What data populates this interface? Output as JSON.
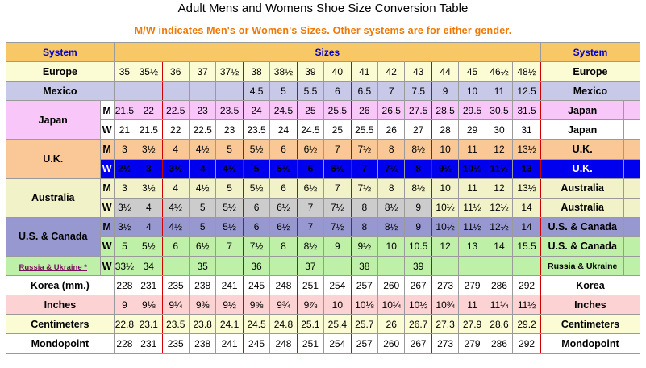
{
  "title": "Adult Mens and Womens Shoe Size Conversion Table",
  "subtitle": "M/W indicates Men's or Women's Sizes. Other systems are for either gender.",
  "header": {
    "system_left": "System",
    "sizes": "Sizes",
    "system_right": "System"
  },
  "rows": [
    {
      "label": "Europe",
      "gender": "",
      "right": "Europe",
      "bg": "#fbfbd4",
      "values": [
        "35",
        "35½",
        "36",
        "37",
        "37½",
        "38",
        "38½",
        "39",
        "40",
        "41",
        "42",
        "43",
        "44",
        "45",
        "46½",
        "48½"
      ]
    },
    {
      "label": "Mexico",
      "gender": "",
      "right": "Mexico",
      "bg": "#c8c8e8",
      "values": [
        "",
        "",
        "",
        "",
        "",
        "4.5",
        "5",
        "5.5",
        "6",
        "6.5",
        "7",
        "7.5",
        "9",
        "10",
        "11",
        "12.5"
      ]
    },
    {
      "label": "Japan",
      "gender": "M",
      "right": "Japan",
      "bg": "#f9c6f9",
      "gbg": "#ffffff",
      "values": [
        "21.5",
        "22",
        "22.5",
        "23",
        "23.5",
        "24",
        "24.5",
        "25",
        "25.5",
        "26",
        "26.5",
        "27.5",
        "28.5",
        "29.5",
        "30.5",
        "31.5"
      ]
    },
    {
      "label": "",
      "gender": "W",
      "right": "Japan",
      "bg": "#ffffff",
      "gbg": "#ffffff",
      "values": [
        "21",
        "21.5",
        "22",
        "22.5",
        "23",
        "23.5",
        "24",
        "24.5",
        "25",
        "25.5",
        "26",
        "27",
        "28",
        "29",
        "30",
        "31"
      ]
    },
    {
      "label": "U.K.",
      "gender": "M",
      "right": "U.K.",
      "bg": "#f9c896",
      "gbg": "#f9c896",
      "values": [
        "3",
        "3½",
        "4",
        "4½",
        "5",
        "5½",
        "6",
        "6½",
        "7",
        "7½",
        "8",
        "8½",
        "10",
        "11",
        "12",
        "13½"
      ]
    },
    {
      "label": "",
      "gender": "W",
      "right": "U.K.",
      "bg": "#0000ee",
      "gbg": "#0000ee",
      "blue": true,
      "values": [
        "2½",
        "3",
        "3½",
        "4",
        "4½",
        "5",
        "5½",
        "6",
        "6½",
        "7",
        "7½",
        "8",
        "9½",
        "10½",
        "11½",
        "13"
      ]
    },
    {
      "label": "Australia",
      "gender": "M",
      "right": "Australia",
      "bg": "#f2f2c8",
      "gbg": "#f2f2c8",
      "values": [
        "3",
        "3½",
        "4",
        "4½",
        "5",
        "5½",
        "6",
        "6½",
        "7",
        "7½",
        "8",
        "8½",
        "10",
        "11",
        "12",
        "13½"
      ]
    },
    {
      "label": "",
      "gender": "W",
      "right": "Australia",
      "bg": "#cccccc",
      "gbg": "#f2f2c8",
      "values": [
        "3½",
        "4",
        "4½",
        "5",
        "5½",
        "6",
        "6½",
        "7",
        "7½",
        "8",
        "8½",
        "9",
        "10½",
        "11½",
        "12½",
        "14"
      ]
    },
    {
      "label": "U.S. & Canada",
      "gender": "M",
      "right": "U.S. & Canada",
      "bg": "#9898d0",
      "gbg": "#9898d0",
      "values": [
        "3½",
        "4",
        "4½",
        "5",
        "5½",
        "6",
        "6½",
        "7",
        "7½",
        "8",
        "8½",
        "9",
        "10½",
        "11½",
        "12½",
        "14"
      ]
    },
    {
      "label": "",
      "gender": "W",
      "right": "U.S. & Canada",
      "bg": "#bff0a8",
      "gbg": "#bff0a8",
      "values": [
        "5",
        "5½",
        "6",
        "6½",
        "7",
        "7½",
        "8",
        "8½",
        "9",
        "9½",
        "10",
        "10.5",
        "12",
        "13",
        "14",
        "15.5"
      ]
    },
    {
      "label": "Russia & Ukraine *",
      "gender": "W",
      "right": "Russia & Ukraine",
      "bg": "#bff0a8",
      "gbg": "#bff0a8",
      "values": [
        "33½",
        "34",
        "",
        "35",
        "",
        "36",
        "",
        "37",
        "",
        "38",
        "",
        "39",
        "",
        "",
        "",
        ""
      ]
    },
    {
      "label": "Korea (mm.)",
      "gender": "",
      "right": "Korea",
      "bg": "#ffffff",
      "values": [
        "228",
        "231",
        "235",
        "238",
        "241",
        "245",
        "248",
        "251",
        "254",
        "257",
        "260",
        "267",
        "273",
        "279",
        "286",
        "292"
      ]
    },
    {
      "label": "Inches",
      "gender": "",
      "right": "Inches",
      "bg": "#fcd2d2",
      "values": [
        "9",
        "9⅛",
        "9¼",
        "9⅜",
        "9½",
        "9⅝",
        "9¾",
        "9⅞",
        "10",
        "10⅛",
        "10¼",
        "10½",
        "10¾",
        "11",
        "11¼",
        "11½"
      ]
    },
    {
      "label": "Centimeters",
      "gender": "",
      "right": "Centimeters",
      "bg": "#fbfbd4",
      "values": [
        "22.8",
        "23.1",
        "23.5",
        "23.8",
        "24.1",
        "24.5",
        "24.8",
        "25.1",
        "25.4",
        "25.7",
        "26",
        "26.7",
        "27.3",
        "27.9",
        "28.6",
        "29.2"
      ]
    },
    {
      "label": "Mondopoint",
      "gender": "",
      "right": "Mondopoint",
      "bg": "#ffffff",
      "values": [
        "228",
        "231",
        "235",
        "238",
        "241",
        "245",
        "248",
        "251",
        "254",
        "257",
        "260",
        "267",
        "273",
        "279",
        "286",
        "292"
      ]
    }
  ],
  "colors": {
    "header_bg": "#f9c866",
    "header_text": "#0000cc",
    "subtitle": "#f07800",
    "separator": "#d00000"
  }
}
